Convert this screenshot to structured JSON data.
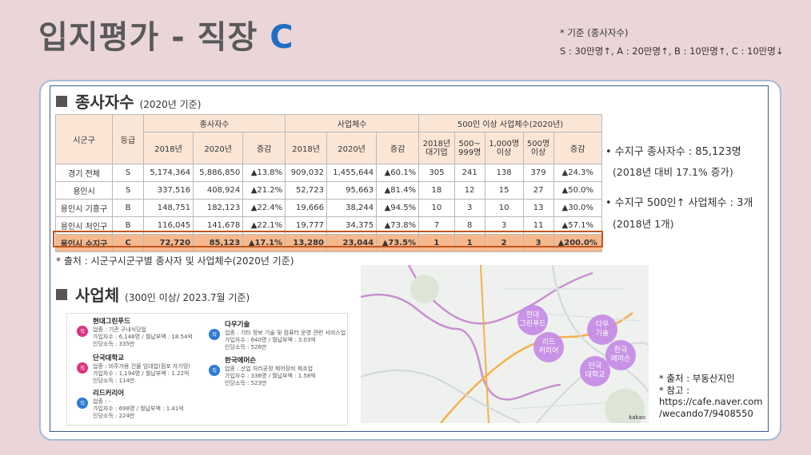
{
  "title": {
    "main": "입지평가 - 직장 ",
    "accent": "C"
  },
  "criteria": {
    "line1": "* 기준 (종사자수)",
    "line2": "S : 30만명↑, A : 20만명↑, B : 10만명↑, C : 10만명↓"
  },
  "section1": {
    "heading": "종사자수",
    "sub": "(2020년 기준)"
  },
  "table": {
    "h_region": "시군구",
    "h_grade": "등급",
    "g_workers": "종사자수",
    "g_biz": "사업체수",
    "g_large": "500인 이상 사업체수(2020년)",
    "c2018": "2018년",
    "c2020": "2020년",
    "cinc": "증감",
    "l1": "2018년\n대기업",
    "l2": "500~\n999명",
    "l3": "1,000명\n이상",
    "l4": "500명\n이상",
    "rows": [
      {
        "region": "경기 전체",
        "grade": "S",
        "w18": "5,174,364",
        "w20": "5,886,850",
        "winc": "▲13.8%",
        "b18": "909,032",
        "b20": "1,455,644",
        "binc": "▲60.1%",
        "l1": "305",
        "l2": "241",
        "l3": "138",
        "l4": "379",
        "linc": "▲24.3%"
      },
      {
        "region": "용인시",
        "grade": "S",
        "w18": "337,516",
        "w20": "408,924",
        "winc": "▲21.2%",
        "b18": "52,723",
        "b20": "95,663",
        "binc": "▲81.4%",
        "l1": "18",
        "l2": "12",
        "l3": "15",
        "l4": "27",
        "linc": "▲50.0%"
      },
      {
        "region": "용인시 기흥구",
        "grade": "B",
        "w18": "148,751",
        "w20": "182,123",
        "winc": "▲22.4%",
        "b18": "19,666",
        "b20": "38,244",
        "binc": "▲94.5%",
        "l1": "10",
        "l2": "3",
        "l3": "10",
        "l4": "13",
        "linc": "▲30.0%"
      },
      {
        "region": "용인시 처인구",
        "grade": "B",
        "w18": "116,045",
        "w20": "141,678",
        "winc": "▲22.1%",
        "b18": "19,777",
        "b20": "34,375",
        "binc": "▲73.8%",
        "l1": "7",
        "l2": "8",
        "l3": "3",
        "l4": "11",
        "linc": "▲57.1%"
      },
      {
        "region": "용인시 수지구",
        "grade": "C",
        "w18": "72,720",
        "w20": "85,123",
        "winc": "▲17.1%",
        "b18": "13,280",
        "b20": "23,044",
        "binc": "▲73.5%",
        "l1": "1",
        "l2": "1",
        "l3": "2",
        "l4": "3",
        "linc": "▲200.0%"
      }
    ]
  },
  "source1": "* 출처 : 시군구시군구별 종사자 및 사업체수(2020년 기준)",
  "bullets": {
    "b1": "• 수지구 종사자수 : 85,123명",
    "b1sub": "(2018년 대비 17.1% 증가)",
    "b2": "• 수지구 500인↑ 사업체수 : 3개",
    "b2sub": "(2018년 1개)"
  },
  "section2": {
    "heading": "사업체",
    "sub": "(300인 이상/ 2023.7월 기준)"
  },
  "companies": [
    {
      "icon": "직",
      "name": "현대그린푸드",
      "l1": "업종 : 기관 구내식당업",
      "l2": "가입자수 : 6,146명 / 월납부액 : 18.54억",
      "l3": "인당소득 : 335만"
    },
    {
      "icon": "직",
      "name": "단국대학교",
      "l1": "업종 : 비주거용 건물 임대업(점포 자기땅)",
      "l2": "가입자수 : 1,194명 / 월납부액 : 1.22억",
      "l3": "인당소득 : 114만"
    },
    {
      "icon": "직",
      "name": "리드커리어",
      "l1": "업종 : -",
      "l2": "가입자수 : 698명 / 월납부액 : 1.41억",
      "l3": "인당소득 : 224만"
    },
    {
      "icon": "직",
      "name": "다우기술",
      "l1": "업종 : 기타 정보 기술 및 컴퓨터 운영 관련 서비스업",
      "l2": "가입자수 : 640명 / 월납부액 : 3.03억",
      "l3": "인당소득 : 526만"
    },
    {
      "icon": "직",
      "name": "한국에머슨",
      "l1": "업종 : 산업 처리공정 제어장비 제조업",
      "l2": "가입자수 : 336명 / 월납부액 : 1.58억",
      "l3": "인당소득 : 523만"
    }
  ],
  "map_labels": {
    "m1": "현대\n그린푸드",
    "m2": "리드\n커리어",
    "m3": "다우\n기술",
    "m4": "한국\n에머슨",
    "m5": "단국\n대학교",
    "kakao": "kakao"
  },
  "map_source": {
    "l1": "* 출처 : 부동산지인",
    "l2": "* 참고 :",
    "l3": "https://cafe.naver.com",
    "l4": "/wecando7/9408550"
  },
  "colors": {
    "accent": "#1f6fc5",
    "highlight": "#f6b98d",
    "header": "#fbe6d6",
    "marker": "#c78ee6"
  }
}
